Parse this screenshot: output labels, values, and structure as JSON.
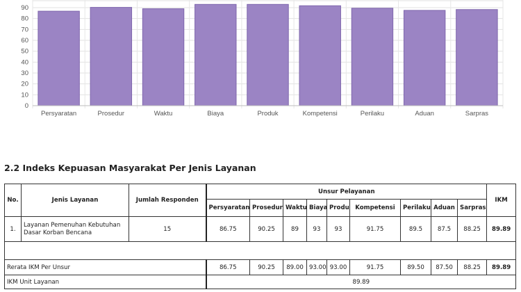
{
  "chart_data": {
    "type": "bar",
    "categories": [
      "Persyaratan",
      "Prosedur",
      "Waktu",
      "Biaya",
      "Produk",
      "Kompetensi",
      "Perilaku",
      "Aduan",
      "Sarpras"
    ],
    "values": [
      86.75,
      90.25,
      89,
      93,
      93,
      91.75,
      89.5,
      87.5,
      88.25
    ],
    "ylim": [
      0,
      90
    ],
    "yticks": [
      0,
      10,
      20,
      30,
      40,
      50,
      60,
      70,
      80,
      90
    ],
    "grid": true,
    "bar_color": "#9b84c4",
    "bar_edge_color": "#7f67ad"
  },
  "section": {
    "title": "2.2 Indeks Kepuasan Masyarakat Per Jenis Layanan"
  },
  "table": {
    "headers": {
      "no": "No.",
      "jenis": "Jenis Layanan",
      "jumlah": "Jumlah Responden",
      "unsur": "Unsur Pelayanan",
      "ikm": "IKM"
    },
    "unsur_columns": [
      "Persyaratan",
      "Prosedur",
      "Waktu",
      "Biaya",
      "Produk",
      "Kompetensi",
      "Perilaku",
      "Aduan",
      "Sarpras"
    ],
    "rows": [
      {
        "no": "1.",
        "jenis": "Layanan Pemenuhan Kebutuhan Dasar Korban Bencana",
        "jumlah": "15",
        "values": [
          "86.75",
          "90.25",
          "89",
          "93",
          "93",
          "91.75",
          "89.5",
          "87.5",
          "88.25"
        ],
        "ikm": "89.89"
      }
    ],
    "rerata": {
      "label": "Rerata IKM Per Unsur",
      "values": [
        "86.75",
        "90.25",
        "89.00",
        "93.00",
        "93.00",
        "91.75",
        "89.50",
        "87.50",
        "88.25"
      ],
      "ikm": "89.89"
    },
    "ikm_unit": {
      "label": "IKM Unit Layanan",
      "value": "89.89"
    }
  }
}
